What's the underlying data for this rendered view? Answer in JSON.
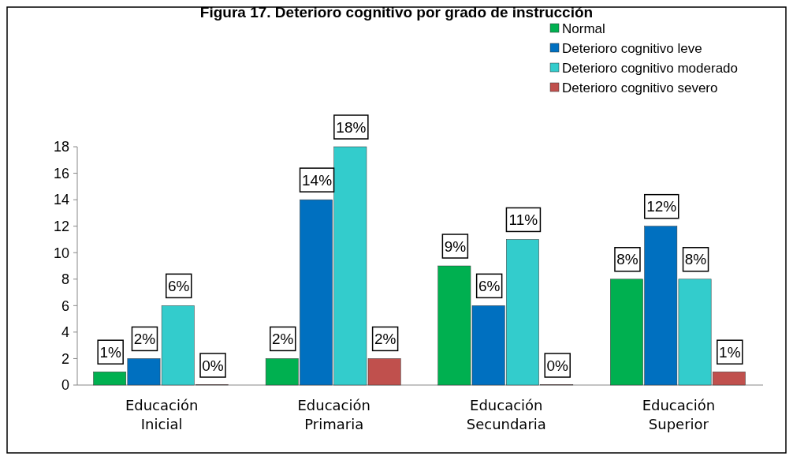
{
  "chart_data": {
    "type": "bar",
    "title": "Figura 17. Deterioro cognitivo por grado de instrucción",
    "categories": [
      "Educación Inicial",
      "Educación Primaria",
      "Educación Secundaria",
      "Educación Superior"
    ],
    "series": [
      {
        "name": "Normal",
        "color": "#00b050",
        "values": [
          1,
          2,
          9,
          8
        ],
        "value_labels": [
          "1%",
          "2%",
          "9%",
          "8%"
        ]
      },
      {
        "name": "Deterioro cognitivo leve",
        "color": "#0070c0",
        "values": [
          2,
          14,
          6,
          12
        ],
        "value_labels": [
          "2%",
          "14%",
          "6%",
          "12%"
        ]
      },
      {
        "name": "Deterioro cognitivo moderado",
        "color": "#33cccc",
        "values": [
          6,
          18,
          11,
          8
        ],
        "value_labels": [
          "6%",
          "18%",
          "11%",
          "8%"
        ]
      },
      {
        "name": "Deterioro cognitivo severo",
        "color": "#c0504d",
        "values": [
          0,
          2,
          0,
          1
        ],
        "value_labels": [
          "0%",
          "2%",
          "0%",
          "1%"
        ]
      }
    ],
    "ylim": [
      0,
      18
    ],
    "yticks": [
      0,
      2,
      4,
      6,
      8,
      10,
      12,
      14,
      16,
      18
    ],
    "legend": "top right"
  }
}
